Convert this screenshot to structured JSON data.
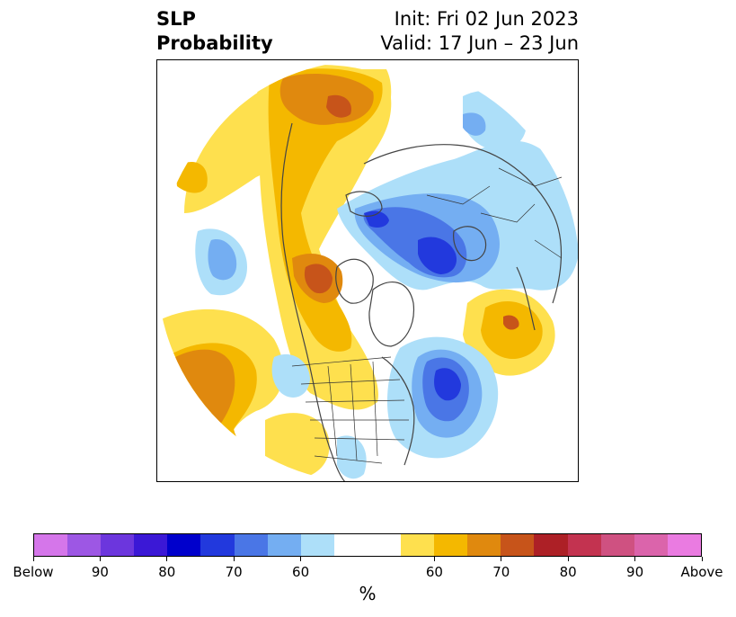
{
  "header": {
    "title_line1": "SLP",
    "title_line2": "Probability",
    "init": "Init: Fri 02 Jun 2023",
    "valid": "Valid: 17 Jun – 23 Jun"
  },
  "colorbar": {
    "unit": "%",
    "colors": [
      "#d576ea",
      "#9d57e4",
      "#6c36dd",
      "#3b18d6",
      "#0000cc",
      "#2239dd",
      "#4a76e6",
      "#74aef2",
      "#addff9",
      "#ffffff",
      "#ffffff",
      "#fee04e",
      "#f4b800",
      "#e0890e",
      "#c7541a",
      "#ad2026",
      "#c33350",
      "#cf5181",
      "#db64ab",
      "#ea7be1"
    ],
    "ticks": [
      {
        "label": "Below",
        "index": 0
      },
      {
        "label": "90",
        "index": 2
      },
      {
        "label": "80",
        "index": 4
      },
      {
        "label": "70",
        "index": 6
      },
      {
        "label": "60",
        "index": 8
      },
      {
        "label": "60",
        "index": 12
      },
      {
        "label": "70",
        "index": 14
      },
      {
        "label": "80",
        "index": 16
      },
      {
        "label": "90",
        "index": 18
      },
      {
        "label": "Above",
        "index": 20
      }
    ]
  },
  "map": {
    "projection": "north-polar-stereographic",
    "colors": {
      "above_60": "#fee04e",
      "above_65": "#f4b800",
      "above_70": "#e0890e",
      "above_75": "#c7541a",
      "below_60": "#addff9",
      "below_65": "#74aef2",
      "below_70": "#4a76e6",
      "below_75": "#2239dd",
      "coast": "#444444",
      "border": "#333333"
    }
  }
}
